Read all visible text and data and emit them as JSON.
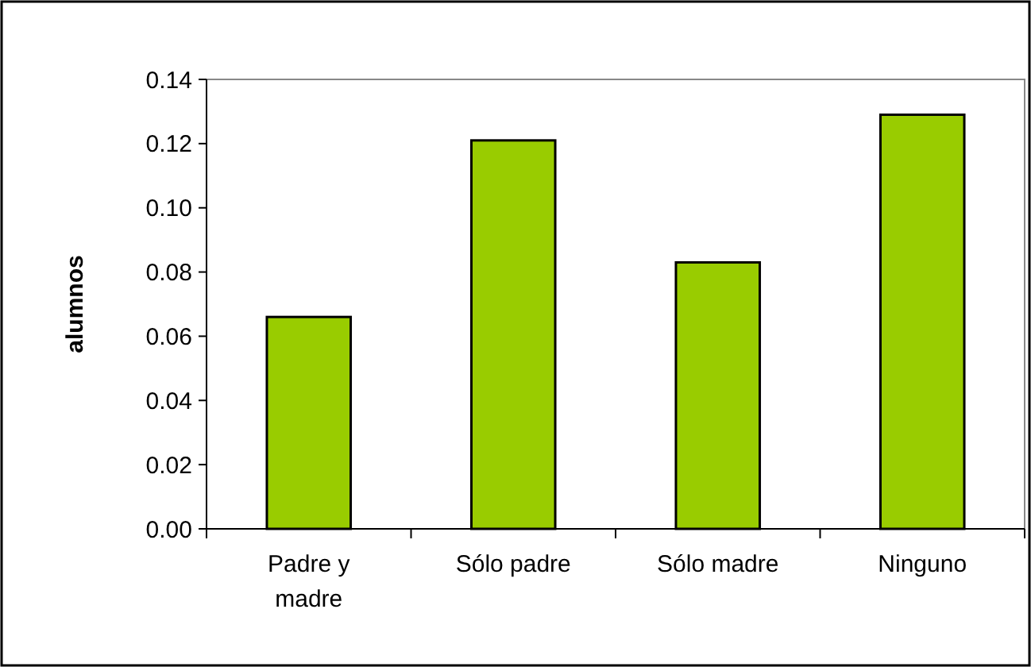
{
  "chart_data": {
    "type": "bar",
    "ylabel": "alumnos",
    "categories": [
      "Padre y madre",
      "Sólo padre",
      "Sólo madre",
      "Ninguno"
    ],
    "values": [
      0.066,
      0.121,
      0.083,
      0.129
    ],
    "color": "#99cc00",
    "ylim": [
      0,
      0.14
    ],
    "yticks": [
      {
        "value": 0,
        "label": "0.00"
      },
      {
        "value": 0.02,
        "label": "0.02"
      },
      {
        "value": 0.04,
        "label": "0.04"
      },
      {
        "value": 0.06,
        "label": "0.06"
      },
      {
        "value": 0.08,
        "label": "0.08"
      },
      {
        "value": 0.1,
        "label": "0.10"
      },
      {
        "value": 0.12,
        "label": "0.12"
      },
      {
        "value": 0.14,
        "label": "0.14"
      }
    ],
    "grid": false
  }
}
